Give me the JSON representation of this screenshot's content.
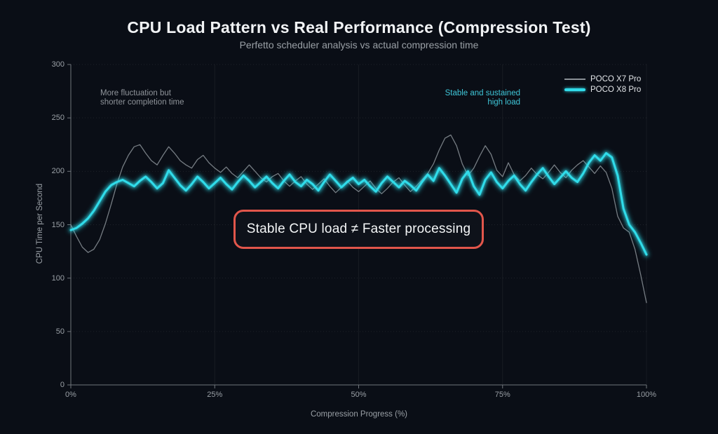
{
  "header": {
    "title": "CPU Load Pattern vs Real Performance (Compression Test)",
    "subtitle": "Perfetto scheduler analysis vs actual compression time"
  },
  "chart_data": {
    "type": "line",
    "title": "CPU Load Pattern vs Real Performance (Compression Test)",
    "subtitle": "Perfetto scheduler analysis vs actual compression time",
    "xlabel": "Compression Progress (%)",
    "ylabel": "CPU Time per Second",
    "xlim": [
      0,
      100
    ],
    "ylim": [
      0,
      300
    ],
    "x_ticks": [
      "0%",
      "25%",
      "50%",
      "75%",
      "100%"
    ],
    "y_ticks": [
      0,
      50,
      100,
      150,
      200,
      250,
      300
    ],
    "grid": true,
    "legend_position": "top-right",
    "x_step": 1,
    "series": [
      {
        "name": "POCO X7 Pro",
        "color": "#8a9096",
        "width": 1.3,
        "glow": false,
        "values": [
          150,
          139,
          129,
          124,
          127,
          136,
          151,
          169,
          188,
          204,
          215,
          223,
          225,
          217,
          210,
          206,
          215,
          223,
          217,
          210,
          206,
          203,
          211,
          215,
          208,
          203,
          199,
          204,
          198,
          194,
          200,
          206,
          200,
          194,
          190,
          195,
          198,
          191,
          186,
          191,
          195,
          188,
          183,
          188,
          193,
          186,
          180,
          185,
          191,
          185,
          181,
          186,
          191,
          184,
          179,
          184,
          190,
          194,
          187,
          181,
          186,
          192,
          198,
          207,
          220,
          231,
          234,
          224,
          207,
          196,
          203,
          214,
          224,
          216,
          201,
          195,
          208,
          197,
          191,
          196,
          203,
          197,
          193,
          199,
          206,
          199,
          194,
          201,
          206,
          210,
          204,
          198,
          205,
          199,
          184,
          158,
          147,
          143,
          127,
          103,
          77
        ]
      },
      {
        "name": "POCO X8 Pro",
        "color": "#30dcea",
        "width": 3,
        "glow": true,
        "values": [
          145,
          147,
          151,
          156,
          163,
          172,
          181,
          187,
          190,
          192,
          189,
          186,
          191,
          195,
          190,
          184,
          189,
          201,
          194,
          187,
          182,
          188,
          195,
          190,
          184,
          189,
          194,
          188,
          183,
          190,
          196,
          191,
          185,
          190,
          195,
          189,
          184,
          191,
          197,
          190,
          186,
          192,
          188,
          182,
          190,
          197,
          191,
          185,
          190,
          194,
          188,
          192,
          186,
          181,
          189,
          195,
          190,
          185,
          191,
          187,
          182,
          190,
          197,
          191,
          203,
          196,
          188,
          180,
          193,
          200,
          186,
          178,
          192,
          199,
          190,
          184,
          191,
          196,
          188,
          182,
          190,
          197,
          203,
          195,
          188,
          194,
          200,
          194,
          190,
          198,
          208,
          215,
          210,
          217,
          213,
          196,
          165,
          150,
          143,
          133,
          122
        ]
      }
    ],
    "annotations": [
      {
        "lines": [
          "More fluctuation but",
          "shorter completion time"
        ],
        "color": "#8f949a",
        "align": "left"
      },
      {
        "lines": [
          "Stable and sustained",
          "high load"
        ],
        "color": "#3fc6d8",
        "align": "right"
      },
      {
        "text": "Stable CPU load ≠ Faster processing",
        "box_color": "#e2564b",
        "text_color": "#f4f6f7"
      }
    ]
  },
  "colors": {
    "background": "#0a0e16",
    "title": "#f1f3f5",
    "muted_text": "#9aa0a6",
    "accent_cyan": "#30dcea",
    "series_gray": "#8a9096",
    "callout_red": "#e2564b",
    "axis": "#70757b"
  }
}
